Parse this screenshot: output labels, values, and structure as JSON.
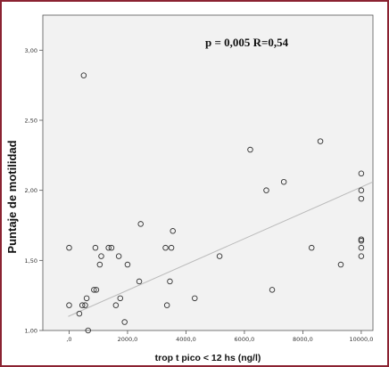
{
  "chart_data": {
    "type": "scatter",
    "xlabel": "trop t pico < 12 hs (ng/l)",
    "ylabel": "Puntaje de motilidad",
    "annotation": "p = 0,005  R=0,54",
    "xlim": [
      -900,
      10400
    ],
    "ylim": [
      1.0,
      3.25
    ],
    "x_ticks": [
      {
        "value": 0,
        "label": ",0"
      },
      {
        "value": 2000,
        "label": "2000,0"
      },
      {
        "value": 4000,
        "label": "4000,0"
      },
      {
        "value": 6000,
        "label": "6000,0"
      },
      {
        "value": 8000,
        "label": "8000,0"
      },
      {
        "value": 10000,
        "label": "10000,0"
      }
    ],
    "y_ticks": [
      {
        "value": 1.0,
        "label": "1,00"
      },
      {
        "value": 1.5,
        "label": "1,50"
      },
      {
        "value": 2.0,
        "label": "2,00"
      },
      {
        "value": 2.5,
        "label": "2,50"
      },
      {
        "value": 3.0,
        "label": "3,00"
      }
    ],
    "grid": false,
    "marker_color": "#333333",
    "fit_line_color": "#bbbbbb",
    "fit_line": {
      "x": [
        -30,
        10400
      ],
      "y": [
        1.1,
        2.06
      ]
    },
    "points": [
      {
        "x": 0,
        "y": 1.59
      },
      {
        "x": 0,
        "y": 1.18
      },
      {
        "x": 350,
        "y": 1.12
      },
      {
        "x": 450,
        "y": 1.18
      },
      {
        "x": 500,
        "y": 2.82
      },
      {
        "x": 550,
        "y": 1.18
      },
      {
        "x": 600,
        "y": 1.23
      },
      {
        "x": 650,
        "y": 1.0
      },
      {
        "x": 850,
        "y": 1.29
      },
      {
        "x": 900,
        "y": 1.59
      },
      {
        "x": 930,
        "y": 1.29
      },
      {
        "x": 1050,
        "y": 1.47
      },
      {
        "x": 1100,
        "y": 1.53
      },
      {
        "x": 1350,
        "y": 1.59
      },
      {
        "x": 1450,
        "y": 1.59
      },
      {
        "x": 1600,
        "y": 1.18
      },
      {
        "x": 1700,
        "y": 1.53
      },
      {
        "x": 1750,
        "y": 1.23
      },
      {
        "x": 1900,
        "y": 1.06
      },
      {
        "x": 2000,
        "y": 1.47
      },
      {
        "x": 2400,
        "y": 1.35
      },
      {
        "x": 2450,
        "y": 1.76
      },
      {
        "x": 3300,
        "y": 1.59
      },
      {
        "x": 3350,
        "y": 1.18
      },
      {
        "x": 3450,
        "y": 1.35
      },
      {
        "x": 3500,
        "y": 1.59
      },
      {
        "x": 3550,
        "y": 1.71
      },
      {
        "x": 4300,
        "y": 1.23
      },
      {
        "x": 5150,
        "y": 1.53
      },
      {
        "x": 6200,
        "y": 2.29
      },
      {
        "x": 6750,
        "y": 2.0
      },
      {
        "x": 6950,
        "y": 1.29
      },
      {
        "x": 7350,
        "y": 2.06
      },
      {
        "x": 8300,
        "y": 1.59
      },
      {
        "x": 8600,
        "y": 2.35
      },
      {
        "x": 9300,
        "y": 1.47
      },
      {
        "x": 10000,
        "y": 2.12
      },
      {
        "x": 10000,
        "y": 2.0
      },
      {
        "x": 10000,
        "y": 1.94
      },
      {
        "x": 10000,
        "y": 1.65
      },
      {
        "x": 10000,
        "y": 1.64
      },
      {
        "x": 10000,
        "y": 1.59
      },
      {
        "x": 10000,
        "y": 1.53
      }
    ]
  }
}
